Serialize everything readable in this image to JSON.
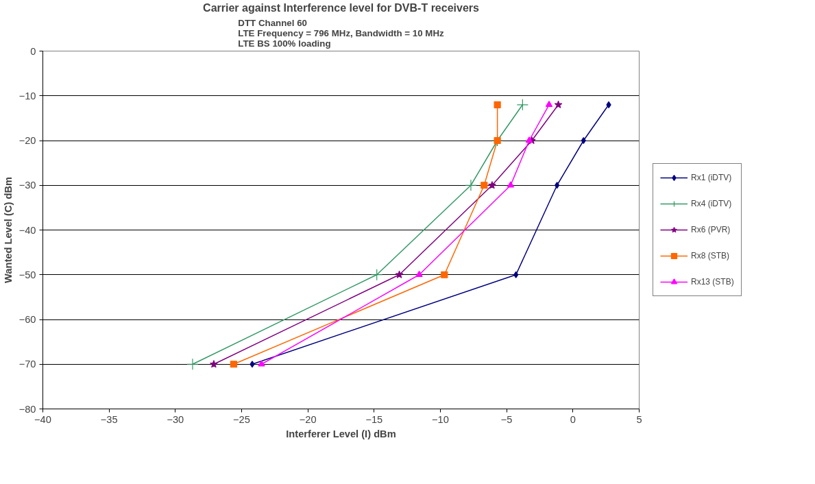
{
  "chart_data": {
    "type": "line",
    "title": "Carrier against Interference level for DVB-T receivers",
    "subtitle": "DTT Channel 60\nLTE Frequency = 796 MHz, Bandwidth = 10 MHz\nLTE BS 100% loading",
    "xlabel": "Interferer Level (I) dBm",
    "ylabel": "Wanted Level (C) dBm",
    "xlim": [
      -40,
      5
    ],
    "xticks": [
      -40,
      -35,
      -30,
      -25,
      -20,
      -15,
      -10,
      -5,
      0,
      5
    ],
    "ylim": [
      -80,
      0
    ],
    "yticks": [
      -80,
      -70,
      -60,
      -50,
      -40,
      -30,
      -20,
      -10,
      0
    ],
    "grid": "y",
    "legend": "right",
    "series": [
      {
        "name": "Rx1 (iDTV)",
        "color": "#000080",
        "marker": "diamond",
        "x": [
          -24.2,
          -4.3,
          -1.2,
          0.8,
          2.7
        ],
        "values": [
          -70,
          -50,
          -30,
          -20,
          -12
        ]
      },
      {
        "name": "Rx4 (iDTV)",
        "color": "#339966",
        "marker": "cross",
        "x": [
          -28.7,
          -14.8,
          -7.7,
          -5.7,
          -3.8
        ],
        "values": [
          -70,
          -50,
          -30,
          -20,
          -12
        ]
      },
      {
        "name": "Rx6 (PVR)",
        "color": "#800080",
        "marker": "star",
        "x": [
          -27.1,
          -13.1,
          -6.1,
          -3.1,
          -1.1
        ],
        "values": [
          -70,
          -50,
          -30,
          -20,
          -12
        ]
      },
      {
        "name": "Rx8 (STB)",
        "color": "#ff6600",
        "marker": "square",
        "x": [
          -25.6,
          -9.7,
          -6.7,
          -5.7,
          -5.7
        ],
        "values": [
          -70,
          -50,
          -30,
          -20,
          -12
        ]
      },
      {
        "name": "Rx13 (STB)",
        "color": "#ff00ff",
        "marker": "triangle",
        "x": [
          -23.5,
          -11.6,
          -4.7,
          -3.3,
          -1.8
        ],
        "values": [
          -70,
          -50,
          -30,
          -20,
          -12
        ]
      }
    ]
  }
}
